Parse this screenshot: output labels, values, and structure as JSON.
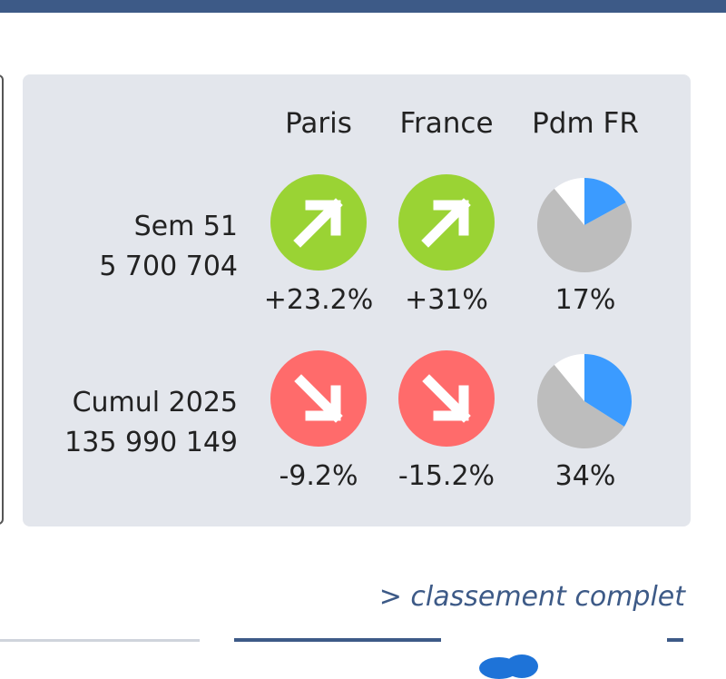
{
  "columns": [
    "Paris",
    "France",
    "Pdm FR"
  ],
  "rows": [
    {
      "label": "Sem 51",
      "value": "5 700 704",
      "paris": {
        "pct": "+23.2%",
        "trend": "up"
      },
      "france": {
        "pct": "+31%",
        "trend": "up"
      },
      "pdm": {
        "pct": "17%",
        "share": 0.17
      }
    },
    {
      "label": "Cumul 2025",
      "value": "135 990 149",
      "paris": {
        "pct": "-9.2%",
        "trend": "down"
      },
      "france": {
        "pct": "-15.2%",
        "trend": "down"
      },
      "pdm": {
        "pct": "34%",
        "share": 0.34
      }
    }
  ],
  "link_label": "> classement complet",
  "icons": {
    "up": "arrow-up-right-icon",
    "down": "arrow-down-right-icon",
    "share": "pie-chart-icon"
  },
  "colors": {
    "up": "#9ad334",
    "down": "#ff6b6b",
    "pie_share": "#3b9bff",
    "pie_rest": "#bdbdbd",
    "pie_white": "#ffffff",
    "accent": "#3d5a87"
  }
}
